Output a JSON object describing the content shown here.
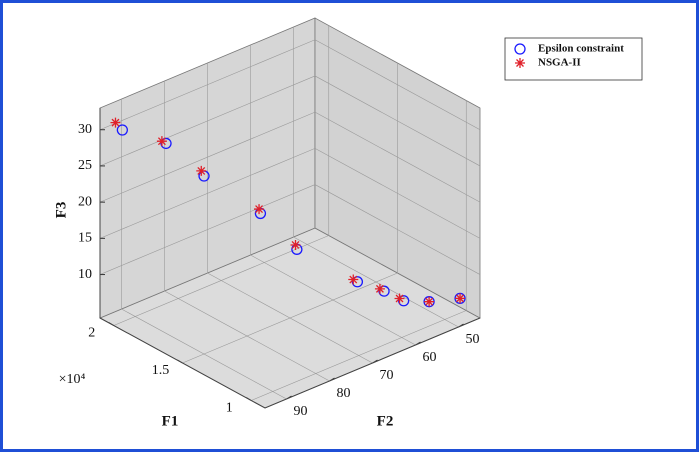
{
  "chart_data": {
    "type": "scatter3d",
    "xlabel": "F1",
    "ylabel": "F2",
    "zlabel": "F3",
    "x_exponent_label": "×10⁴",
    "xlim": [
      9000,
      21000
    ],
    "ylim": [
      45,
      95
    ],
    "zlim": [
      4,
      33
    ],
    "xticks": [
      {
        "value": 10000,
        "label": "1"
      },
      {
        "value": 15000,
        "label": "1.5"
      },
      {
        "value": 20000,
        "label": "2"
      }
    ],
    "yticks": [
      50,
      60,
      70,
      80,
      90
    ],
    "zticks": [
      10,
      15,
      20,
      25,
      30
    ],
    "grid": true,
    "legend": "upper right",
    "series": [
      {
        "name": "Epsilon constraint",
        "color": "#1a1aff",
        "marker": "circle",
        "x": [
          20000,
          18700,
          17500,
          15900,
          14500,
          12600,
          11600,
          10800,
          10200,
          9200
        ],
        "y": [
          93,
          87,
          82,
          74,
          70,
          62,
          59,
          57,
          53,
          49
        ],
        "z": [
          30.5,
          28.5,
          24,
          18.5,
          14,
          9.5,
          8.5,
          7.5,
          7,
          7.5
        ]
      },
      {
        "name": "NSGA-II",
        "color": "#e0202a",
        "marker": "asterisk",
        "x": [
          20500,
          19000,
          17700,
          16000,
          14600,
          12900,
          11900,
          11100,
          10200,
          9200
        ],
        "y": [
          93,
          87,
          82,
          74,
          70,
          62,
          59,
          57,
          53,
          49
        ],
        "z": [
          31,
          28.5,
          24.5,
          19,
          14.5,
          9.5,
          8.5,
          7.5,
          7,
          7.5
        ]
      }
    ]
  }
}
